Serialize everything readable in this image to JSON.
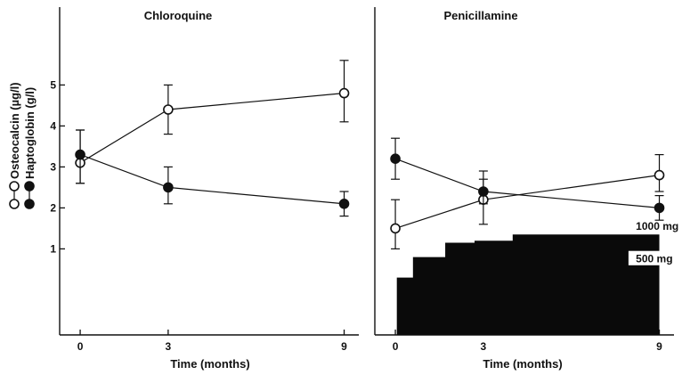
{
  "chart_data": [
    {
      "type": "line",
      "title": "Chloroquine",
      "xlabel": "Time (months)",
      "ylabel": "",
      "x_ticks": [
        "0",
        "3",
        "9"
      ],
      "y_ticks": [
        "1",
        "2",
        "3",
        "4",
        "5"
      ],
      "x": [
        0,
        3,
        9
      ],
      "xlim": [
        -0.7,
        9.5
      ],
      "ylim": [
        -1.1,
        6.9
      ],
      "series": [
        {
          "name": "Osteocalcin (µg/l)",
          "marker": "open-circle",
          "values": [
            3.1,
            4.4,
            4.8
          ],
          "err_upper": [
            3.9,
            5.0,
            5.6
          ],
          "err_lower": [
            2.6,
            3.8,
            4.1
          ]
        },
        {
          "name": "Haptoglobin (g/l)",
          "marker": "filled-circle",
          "values": [
            3.3,
            2.5,
            2.1
          ],
          "err_upper": [
            3.9,
            3.0,
            2.4
          ],
          "err_lower": [
            2.6,
            2.1,
            1.8
          ]
        }
      ]
    },
    {
      "type": "line",
      "title": "Penicillamine",
      "xlabel": "Time (months)",
      "ylabel": "",
      "x_ticks": [
        "0",
        "3",
        "9"
      ],
      "x": [
        0,
        3,
        9
      ],
      "xlim": [
        -0.7,
        9.5
      ],
      "ylim": [
        -1.1,
        6.9
      ],
      "series": [
        {
          "name": "Osteocalcin (µg/l)",
          "marker": "open-circle",
          "values": [
            1.5,
            2.2,
            2.8
          ],
          "err_upper": [
            2.2,
            2.7,
            3.3
          ],
          "err_lower": [
            1.0,
            1.6,
            2.4
          ]
        },
        {
          "name": "Haptoglobin (g/l)",
          "marker": "filled-circle",
          "values": [
            3.2,
            2.4,
            2.0
          ],
          "err_upper": [
            3.7,
            2.9,
            2.3
          ],
          "err_lower": [
            2.7,
            2.1,
            1.7
          ]
        }
      ],
      "dose_steps": [
        {
          "x_start": 0.05,
          "x_end": 0.6,
          "level": 0.3
        },
        {
          "x_start": 0.6,
          "x_end": 1.7,
          "level": 0.8
        },
        {
          "x_start": 1.7,
          "x_end": 2.7,
          "level": 1.15
        },
        {
          "x_start": 2.7,
          "x_end": 4.0,
          "level": 1.2
        },
        {
          "x_start": 4.0,
          "x_end": 9.0,
          "level": 1.35
        }
      ],
      "dose_labels": [
        "1000 mg",
        "500 mg"
      ]
    }
  ],
  "legend": {
    "osteocalcin": "Osteocalcin (µg/l)",
    "haptoglobin": "Haptoglobin (g/l)"
  },
  "colors": {
    "ink": "#111111",
    "paper": "#ffffff"
  }
}
